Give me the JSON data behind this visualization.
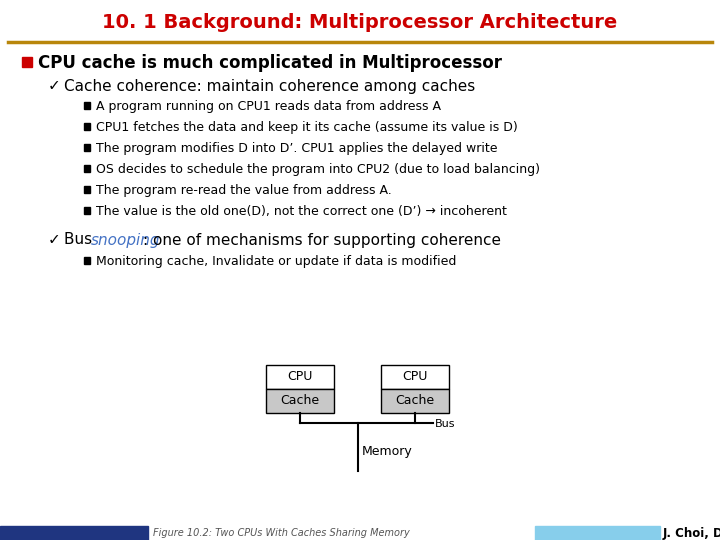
{
  "title": "10. 1 Background: Multiprocessor Architecture",
  "title_color": "#cc0000",
  "bg_color": "#ffffff",
  "separator_color": "#b8860b",
  "bullet1": "CPU cache is much complicated in Multiprocessor",
  "sub1_header": "Cache coherence: maintain coherence among caches",
  "sub1_items": [
    "A program running on CPU1 reads data from address A",
    "CPU1 fetches the data and keep it its cache (assume its value is D)",
    "The program modifies D into D’. CPU1 applies the delayed write",
    "OS decides to schedule the program into CPU2 (due to load balancing)",
    "The program re-read the value from address A.",
    "The value is the old one(D), not the correct one (D’) → incoherent"
  ],
  "sub2_header_pre": "Bus ",
  "sub2_header_link": "snooping",
  "sub2_header_post": ": one of mechanisms for supporting coherence",
  "sub2_link_color": "#4472c4",
  "sub2_items": [
    "Monitoring cache, Invalidate or update if data is modified"
  ],
  "fig_caption": "Figure 10.2: Two CPUs With Caches Sharing Memory",
  "fig_caption_color": "#555555",
  "author": "J. Choi, DKU",
  "footer_left_color": "#1f3580",
  "footer_right_color": "#87ceeb",
  "text_color": "#000000"
}
